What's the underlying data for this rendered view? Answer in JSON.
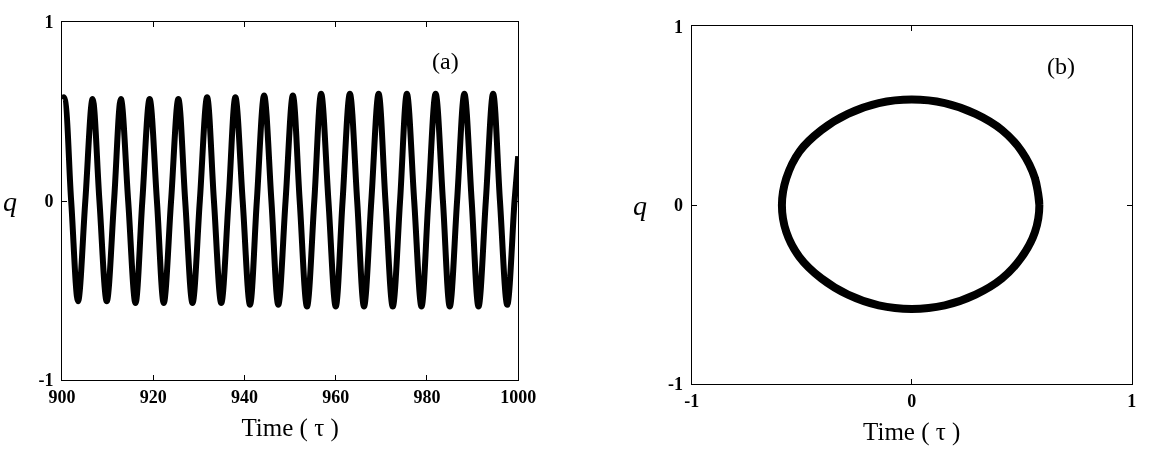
{
  "chart_data": [
    {
      "type": "line",
      "xlabel": "Time ( τ )",
      "ylabel": "q",
      "annotations": [
        "(a)"
      ],
      "xlim": [
        900,
        1000
      ],
      "xticks": [
        900,
        920,
        940,
        960,
        980,
        1000
      ],
      "ylim": [
        -1,
        1
      ],
      "yticks": [
        -1,
        0,
        1
      ],
      "x": [
        900,
        900.4,
        902.0,
        903.5,
        905.1,
        906.7,
        908.2,
        909.8,
        911.4,
        912.9,
        914.5,
        916.1,
        917.6,
        919.2,
        920.8,
        922.3,
        923.9,
        925.5,
        927.0,
        928.6,
        930.2,
        931.8,
        933.3,
        934.9,
        936.5,
        938.0,
        939.6,
        941.2,
        942.7,
        944.3,
        945.9,
        947.4,
        949.0,
        950.6,
        952.1,
        953.7,
        955.3,
        956.8,
        958.4,
        960.0,
        961.5,
        963.1,
        964.7,
        966.2,
        967.8,
        969.4,
        970.9,
        972.5,
        974.1,
        975.6,
        977.2,
        978.8,
        980.3,
        981.9,
        983.5,
        985.0,
        986.6,
        988.2,
        989.8,
        991.3,
        992.9,
        994.5,
        996.0,
        997.6,
        999.2,
        1000
      ],
      "series": [
        {
          "color": "#000000",
          "values": [
            0.57,
            0.58,
            0,
            -0.56,
            0,
            0.57,
            0,
            -0.56,
            0,
            0.57,
            0,
            -0.57,
            0,
            0.57,
            0,
            -0.57,
            0,
            0.57,
            0,
            -0.57,
            0,
            0.58,
            0,
            -0.57,
            0,
            0.58,
            0,
            -0.58,
            0,
            0.59,
            0,
            -0.58,
            0,
            0.59,
            0,
            -0.59,
            0,
            0.6,
            0,
            -0.59,
            0,
            0.6,
            0,
            -0.59,
            0,
            0.6,
            0,
            -0.59,
            0,
            0.6,
            0,
            -0.59,
            0,
            0.6,
            0,
            -0.59,
            0,
            0.6,
            0,
            -0.59,
            0,
            0.6,
            0,
            -0.58,
            0,
            0.25
          ]
        }
      ]
    },
    {
      "type": "line",
      "xlabel": "Time ( τ )",
      "ylabel": "q",
      "annotations": [
        "(b)"
      ],
      "xlim": [
        -1,
        1
      ],
      "xticks": [
        -1,
        0,
        1
      ],
      "ylim": [
        -1,
        1
      ],
      "yticks": [
        -1,
        0,
        1
      ],
      "series": [
        {
          "color": "#000000",
          "x": [
            0.58,
            0.56,
            0.5,
            0.41,
            0.29,
            0.15,
            0,
            -0.15,
            -0.29,
            -0.41,
            -0.51,
            -0.57,
            -0.59,
            -0.57,
            -0.51,
            -0.41,
            -0.29,
            -0.15,
            0,
            0.15,
            0.29,
            0.41,
            0.5,
            0.56,
            0.58,
            0.56
          ],
          "values": [
            0,
            0.15,
            0.3,
            0.42,
            0.51,
            0.57,
            0.59,
            0.57,
            0.51,
            0.42,
            0.3,
            0.15,
            0,
            -0.15,
            -0.29,
            -0.41,
            -0.5,
            -0.56,
            -0.58,
            -0.56,
            -0.5,
            -0.41,
            -0.29,
            -0.15,
            0,
            0.15
          ]
        }
      ]
    }
  ]
}
